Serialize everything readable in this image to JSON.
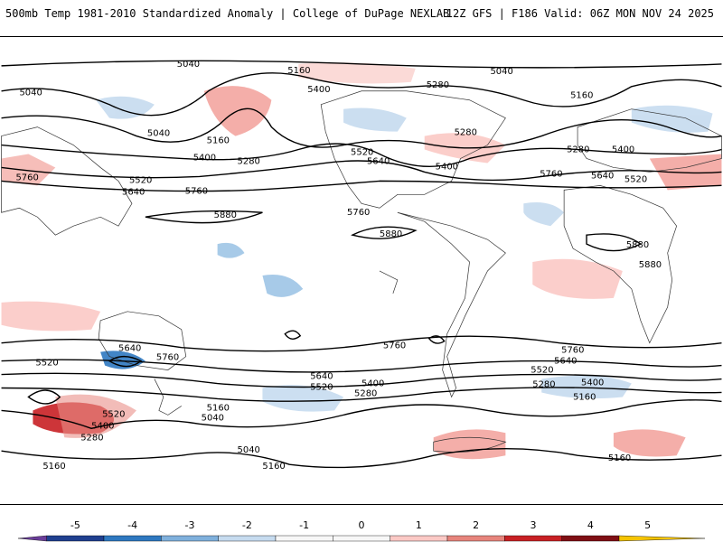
{
  "header": {
    "left": "500mb Temp 1981-2010 Standardized Anomaly | College of DuPage NEXLAB",
    "right": "12Z GFS | F186 Valid: 06Z MON NOV 24 2025"
  },
  "colorbar": {
    "ticks": [
      "-5",
      "-4",
      "-3",
      "-2",
      "-1",
      "0",
      "1",
      "2",
      "3",
      "4",
      "5"
    ],
    "colors": [
      "#6a3d9a",
      "#1f3f8f",
      "#2e78c0",
      "#7fb0dc",
      "#c6dbef",
      "#f7f7f7",
      "#f7f7f7",
      "#fbc9c5",
      "#e7847c",
      "#c82024",
      "#7f0f14",
      "#f5c400"
    ]
  },
  "contour_labels": {
    "v5040": "5040",
    "v5160": "5160",
    "v5280": "5280",
    "v5400": "5400",
    "v5520": "5520",
    "v5640": "5640",
    "v5760": "5760",
    "v5880": "5880"
  }
}
